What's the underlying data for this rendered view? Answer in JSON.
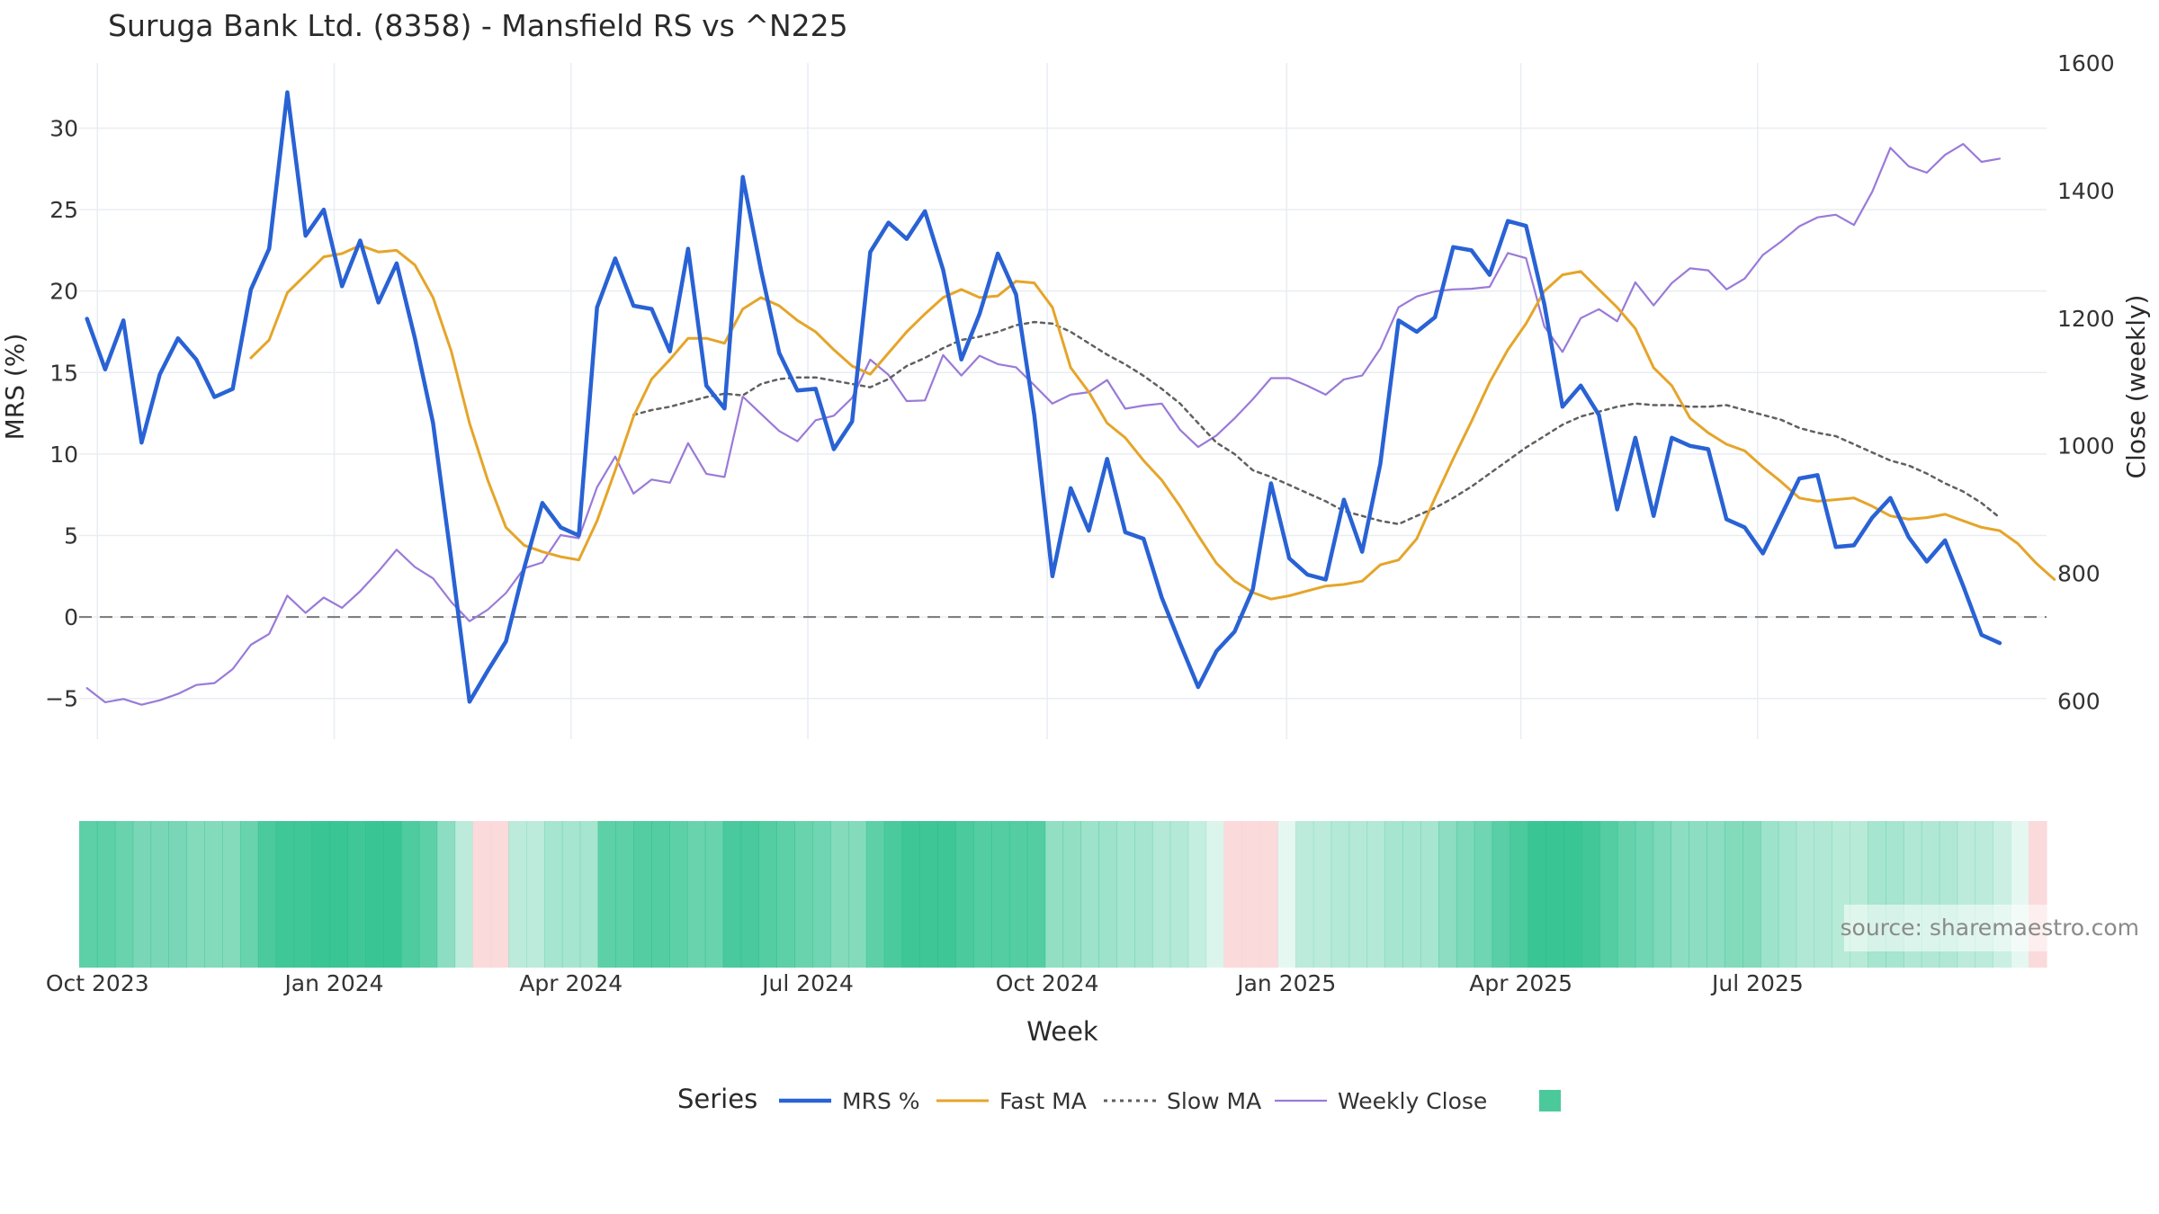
{
  "title": "Suruga Bank Ltd. (8358) - Mansfield RS vs ^N225",
  "source": "source: sharemaestro.com",
  "legend": {
    "title": "Series",
    "items": [
      {
        "label": "MRS %",
        "color": "#2962d4",
        "style": "solid-thick"
      },
      {
        "label": "Fast MA",
        "color": "#e5a52a",
        "style": "solid"
      },
      {
        "label": "Slow MA",
        "color": "#606060",
        "style": "dotted"
      },
      {
        "label": "Weekly Close",
        "color": "#9a7ad8",
        "style": "solid-thin"
      },
      {
        "label": "",
        "color": "#4cc99a",
        "style": "swatch"
      }
    ]
  },
  "chart_data": {
    "type": "line",
    "title": "Suruga Bank Ltd. (8358) - Mansfield RS vs ^N225",
    "xlabel": "Week",
    "ylabel": "MRS (%)",
    "y2label": "Close (weekly)",
    "ylim": [
      -7.5,
      34
    ],
    "y2lim": [
      540,
      1600
    ],
    "yticks": [
      -5,
      0,
      5,
      10,
      15,
      20,
      25,
      30
    ],
    "y2ticks": [
      600,
      800,
      1000,
      1200,
      1400,
      1600
    ],
    "grid": true,
    "zero_line": true,
    "x_tick_labels": [
      "Oct 2023",
      "Jan 2024",
      "Apr 2024",
      "Jul 2024",
      "Oct 2024",
      "Jan 2025",
      "Apr 2025",
      "Jul 2025"
    ],
    "x_ticks": [
      "2023-10-02",
      "2024-01-01",
      "2024-04-01",
      "2024-07-01",
      "2024-10-01",
      "2025-01-01",
      "2025-04-01",
      "2025-07-01"
    ],
    "x_start": "2023-09-25",
    "x_end": "2025-10-20",
    "series": [
      {
        "name": "MRS %",
        "axis": "y",
        "values": [
          18.3,
          15.2,
          18.2,
          10.7,
          14.9,
          17.1,
          15.8,
          13.5,
          14.0,
          20.1,
          22.6,
          32.2,
          23.4,
          25.0,
          20.3,
          23.1,
          19.3,
          21.7,
          17.1,
          11.9,
          3.5,
          -5.2,
          -3.3,
          -1.5,
          3.0,
          7.0,
          5.5,
          5.0,
          19.0,
          22.0,
          19.1,
          18.9,
          16.3,
          22.6,
          14.2,
          12.8,
          27.0,
          21.3,
          16.2,
          13.9,
          14.0,
          10.3,
          12.0,
          22.4,
          24.2,
          23.2,
          24.9,
          21.3,
          15.8,
          18.6,
          22.3,
          19.8,
          12.4,
          2.5,
          7.9,
          5.3,
          9.7,
          5.2,
          4.8,
          1.2,
          -1.6,
          -4.3,
          -2.1,
          -0.9,
          1.7,
          8.2,
          3.6,
          2.6,
          2.3,
          7.2,
          4.0,
          9.4,
          18.2,
          17.5,
          18.4,
          22.7,
          22.5,
          21.0,
          24.3,
          24.0,
          19.2,
          12.9,
          14.2,
          12.4,
          6.6,
          11.0,
          6.2,
          11.0,
          10.5,
          10.3,
          6.0,
          5.5,
          3.9,
          6.2,
          8.5,
          8.7,
          4.3,
          4.4,
          6.1,
          7.3,
          4.9,
          3.4,
          4.7,
          1.9,
          -1.1,
          -1.6
        ]
      },
      {
        "name": "Fast MA",
        "axis": "y",
        "start_index": 9,
        "values": [
          15.9,
          17.0,
          19.9,
          21.0,
          22.1,
          22.3,
          22.8,
          22.4,
          22.5,
          21.6,
          19.6,
          16.3,
          11.9,
          8.4,
          5.5,
          4.4,
          4.0,
          3.7,
          3.5,
          5.9,
          9.0,
          12.3,
          14.6,
          15.8,
          17.1,
          17.1,
          16.8,
          18.9,
          19.6,
          19.1,
          18.2,
          17.5,
          16.4,
          15.4,
          14.9,
          16.2,
          17.5,
          18.6,
          19.6,
          20.1,
          19.6,
          19.7,
          20.6,
          20.5,
          19.0,
          15.3,
          13.8,
          11.9,
          11.0,
          9.6,
          8.4,
          6.8,
          5.0,
          3.3,
          2.2,
          1.5,
          1.1,
          1.3,
          1.6,
          1.9,
          2.0,
          2.2,
          3.2,
          3.5,
          4.8,
          7.3,
          9.7,
          12.0,
          14.4,
          16.4,
          18.0,
          20.0,
          21.0,
          21.2,
          20.1,
          19.0,
          17.7,
          15.3,
          14.2,
          12.2,
          11.3,
          10.6,
          10.2,
          9.2,
          8.3,
          7.3,
          7.1,
          7.2,
          7.3,
          6.8,
          6.2,
          6.0,
          6.1,
          6.3,
          5.9,
          5.5,
          5.3,
          4.5,
          3.3,
          2.3
        ]
      },
      {
        "name": "Slow MA",
        "axis": "y",
        "start_index": 30,
        "values": [
          12.4,
          12.7,
          12.9,
          13.2,
          13.5,
          13.7,
          13.6,
          14.3,
          14.6,
          14.7,
          14.7,
          14.5,
          14.3,
          14.1,
          14.6,
          15.4,
          15.9,
          16.5,
          17.0,
          17.2,
          17.5,
          17.9,
          18.1,
          18.0,
          17.5,
          16.8,
          16.1,
          15.5,
          14.8,
          14.0,
          13.1,
          11.9,
          10.7,
          10.0,
          9.0,
          8.6,
          8.1,
          7.6,
          7.1,
          6.5,
          6.2,
          5.9,
          5.7,
          6.2,
          6.7,
          7.3,
          8.0,
          8.8,
          9.6,
          10.4,
          11.1,
          11.8,
          12.3,
          12.6,
          12.9,
          13.1,
          13.0,
          13.0,
          12.9,
          12.9,
          13.0,
          12.7,
          12.4,
          12.1,
          11.6,
          11.3,
          11.1,
          10.6,
          10.1,
          9.6,
          9.3,
          8.8,
          8.2,
          7.7,
          7.0,
          6.1
        ]
      },
      {
        "name": "Weekly Close",
        "axis": "y2",
        "values": [
          620,
          598,
          603,
          594,
          601,
          611,
          625,
          628,
          650,
          688,
          705,
          765,
          738,
          762,
          746,
          772,
          803,
          837,
          810,
          792,
          755,
          725,
          743,
          769,
          808,
          817,
          860,
          855,
          935,
          983,
          925,
          947,
          942,
          1004,
          956,
          951,
          1077,
          1050,
          1023,
          1007,
          1040,
          1047,
          1075,
          1135,
          1111,
          1070,
          1071,
          1142,
          1110,
          1141,
          1128,
          1123,
          1095,
          1066,
          1080,
          1084,
          1103,
          1058,
          1063,
          1066,
          1025,
          998,
          1016,
          1043,
          1073,
          1106,
          1106,
          1094,
          1080,
          1104,
          1110,
          1152,
          1217,
          1234,
          1242,
          1245,
          1246,
          1249,
          1302,
          1294,
          1187,
          1147,
          1200,
          1214,
          1195,
          1256,
          1220,
          1255,
          1278,
          1275,
          1245,
          1262,
          1299,
          1320,
          1344,
          1358,
          1362,
          1346,
          1398,
          1467,
          1438,
          1428,
          1456,
          1473,
          1445,
          1450
        ]
      }
    ]
  },
  "regime_strip": {
    "values": [
      0.74,
      0.74,
      0.69,
      0.62,
      0.62,
      0.62,
      0.57,
      0.57,
      0.57,
      0.69,
      0.83,
      0.88,
      0.88,
      0.91,
      0.91,
      0.88,
      0.91,
      0.91,
      0.81,
      0.74,
      0.53,
      0.31,
      -1,
      -1,
      0.31,
      0.31,
      0.41,
      0.41,
      0.41,
      0.74,
      0.74,
      0.79,
      0.79,
      0.74,
      0.69,
      0.69,
      0.84,
      0.84,
      0.79,
      0.74,
      0.69,
      0.66,
      0.57,
      0.57,
      0.74,
      0.83,
      0.89,
      0.89,
      0.89,
      0.83,
      0.79,
      0.79,
      0.79,
      0.79,
      0.5,
      0.5,
      0.45,
      0.45,
      0.41,
      0.41,
      0.35,
      0.35,
      0.27,
      0.16,
      -1,
      -1,
      -1,
      0.12,
      0.31,
      0.31,
      0.35,
      0.35,
      0.35,
      0.41,
      0.41,
      0.41,
      0.53,
      0.6,
      0.66,
      0.76,
      0.83,
      0.91,
      0.91,
      0.91,
      0.87,
      0.79,
      0.71,
      0.66,
      0.6,
      0.53,
      0.53,
      0.53,
      0.57,
      0.57,
      0.45,
      0.41,
      0.36,
      0.36,
      0.33,
      0.33,
      0.41,
      0.41,
      0.36,
      0.36,
      0.36,
      0.31,
      0.31,
      0.24,
      0.12,
      -1
    ]
  }
}
